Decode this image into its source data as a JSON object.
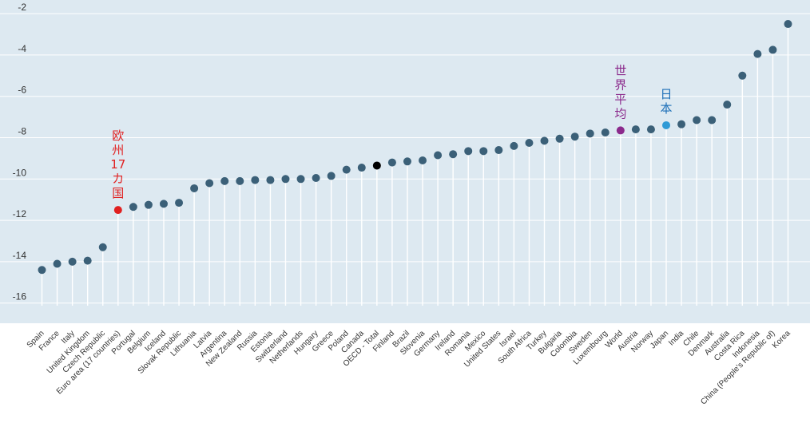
{
  "chart_data": {
    "type": "scatter",
    "style": "lollipop",
    "ylim": [
      -17,
      -1.5
    ],
    "yticks": [
      -2,
      -4,
      -6,
      -8,
      -10,
      -12,
      -14,
      -16
    ],
    "grid": true,
    "colors": {
      "background": "#dde9f1",
      "gridline": "#ffffff",
      "stem": "#ffffff",
      "dot": "#3b6078",
      "euro": "#e02020",
      "oecd": "#000000",
      "world": "#8b2a8c",
      "japan": "#2e9ad6",
      "japan_annotation": "#1d6fb8"
    },
    "categories": [
      "Spain",
      "France",
      "Italy",
      "United Kingdom",
      "Czech Republic",
      "Euro area (17 countries)",
      "Portugal",
      "Belgium",
      "Iceland",
      "Slovak Republic",
      "Lithuania",
      "Latvia",
      "Argentina",
      "New Zealand",
      "Russia",
      "Estonia",
      "Switzerland",
      "Netherlands",
      "Hungary",
      "Greece",
      "Poland",
      "Canada",
      "OECD - Total",
      "Finland",
      "Brazil",
      "Slovenia",
      "Germany",
      "Ireland",
      "Romania",
      "Mexico",
      "United States",
      "Israel",
      "South Africa",
      "Turkey",
      "Bulgaria",
      "Colombia",
      "Sweden",
      "Luxembourg",
      "World",
      "Austria",
      "Norway",
      "Japan",
      "India",
      "Chile",
      "Denmark",
      "Australia",
      "Costa Rica",
      "Indonesia",
      "China (People's Republic of)",
      "Korea"
    ],
    "values": [
      -14.4,
      -14.1,
      -14.0,
      -13.95,
      -13.3,
      -11.5,
      -11.35,
      -11.25,
      -11.2,
      -11.15,
      -10.45,
      -10.2,
      -10.1,
      -10.1,
      -10.05,
      -10.05,
      -10.0,
      -10.0,
      -9.95,
      -9.85,
      -9.55,
      -9.45,
      -9.35,
      -9.2,
      -9.15,
      -9.1,
      -8.85,
      -8.8,
      -8.65,
      -8.65,
      -8.6,
      -8.4,
      -8.25,
      -8.15,
      -8.05,
      -7.95,
      -7.8,
      -7.75,
      -7.65,
      -7.6,
      -7.6,
      -7.4,
      -7.35,
      -7.15,
      -7.15,
      -6.4,
      -5.0,
      -3.95,
      -3.75,
      -2.5
    ],
    "highlights": [
      {
        "category": "Euro area (17 countries)",
        "role": "euro"
      },
      {
        "category": "OECD - Total",
        "role": "oecd"
      },
      {
        "category": "World",
        "role": "world"
      },
      {
        "category": "Japan",
        "role": "japan"
      }
    ],
    "annotations": [
      {
        "category": "Euro area (17 countries)",
        "chars": [
          "欧",
          "州",
          "17",
          "カ",
          "国"
        ],
        "role": "euro"
      },
      {
        "category": "World",
        "chars": [
          "世",
          "界",
          "平",
          "均"
        ],
        "role": "world"
      },
      {
        "category": "Japan",
        "chars": [
          "日",
          "本"
        ],
        "role": "japan_annotation"
      }
    ]
  }
}
